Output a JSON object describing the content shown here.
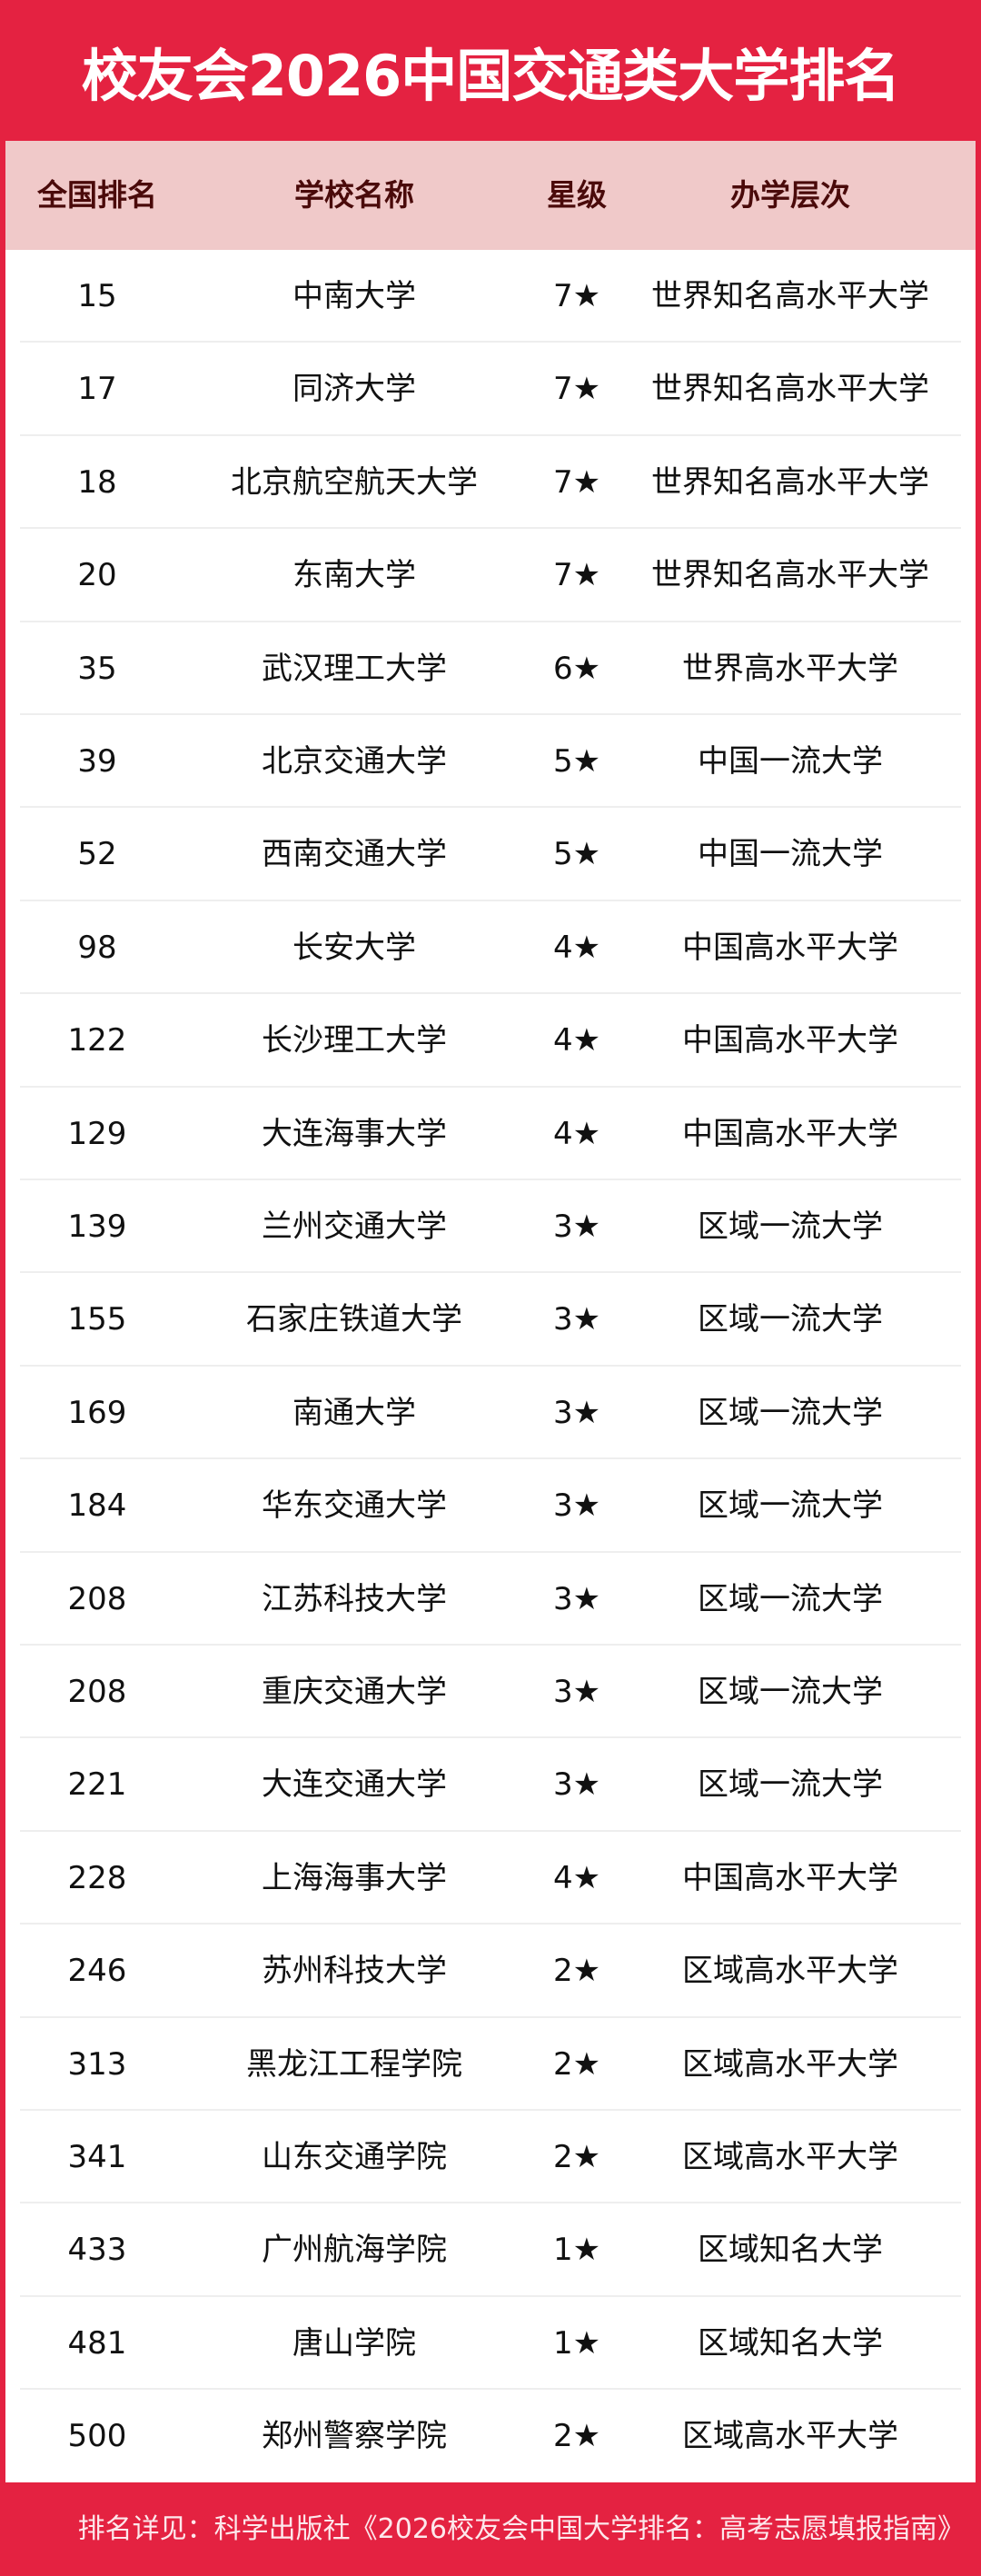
{
  "title": "校友会2026中国交通类大学排名",
  "colors": {
    "brand_red": "#e42241",
    "header_bg": "#f0c9c9",
    "header_text": "#4a0a0a"
  },
  "table": {
    "headers": [
      "全国排名",
      "学校名称",
      "星级",
      "办学层次"
    ],
    "rows": [
      [
        "15",
        "中南大学",
        "7★",
        "世界知名高水平大学"
      ],
      [
        "17",
        "同济大学",
        "7★",
        "世界知名高水平大学"
      ],
      [
        "18",
        "北京航空航天大学",
        "7★",
        "世界知名高水平大学"
      ],
      [
        "20",
        "东南大学",
        "7★",
        "世界知名高水平大学"
      ],
      [
        "35",
        "武汉理工大学",
        "6★",
        "世界高水平大学"
      ],
      [
        "39",
        "北京交通大学",
        "5★",
        "中国一流大学"
      ],
      [
        "52",
        "西南交通大学",
        "5★",
        "中国一流大学"
      ],
      [
        "98",
        "长安大学",
        "4★",
        "中国高水平大学"
      ],
      [
        "122",
        "长沙理工大学",
        "4★",
        "中国高水平大学"
      ],
      [
        "129",
        "大连海事大学",
        "4★",
        "中国高水平大学"
      ],
      [
        "139",
        "兰州交通大学",
        "3★",
        "区域一流大学"
      ],
      [
        "155",
        "石家庄铁道大学",
        "3★",
        "区域一流大学"
      ],
      [
        "169",
        "南通大学",
        "3★",
        "区域一流大学"
      ],
      [
        "184",
        "华东交通大学",
        "3★",
        "区域一流大学"
      ],
      [
        "208",
        "江苏科技大学",
        "3★",
        "区域一流大学"
      ],
      [
        "208",
        "重庆交通大学",
        "3★",
        "区域一流大学"
      ],
      [
        "221",
        "大连交通大学",
        "3★",
        "区域一流大学"
      ],
      [
        "228",
        "上海海事大学",
        "4★",
        "中国高水平大学"
      ],
      [
        "246",
        "苏州科技大学",
        "2★",
        "区域高水平大学"
      ],
      [
        "313",
        "黑龙江工程学院",
        "2★",
        "区域高水平大学"
      ],
      [
        "341",
        "山东交通学院",
        "2★",
        "区域高水平大学"
      ],
      [
        "433",
        "广州航海学院",
        "1★",
        "区域知名大学"
      ],
      [
        "481",
        "唐山学院",
        "1★",
        "区域知名大学"
      ],
      [
        "500",
        "郑州警察学院",
        "2★",
        "区域高水平大学"
      ]
    ]
  },
  "footer": "排名详见：科学出版社《2026校友会中国大学排名：高考志愿填报指南》"
}
